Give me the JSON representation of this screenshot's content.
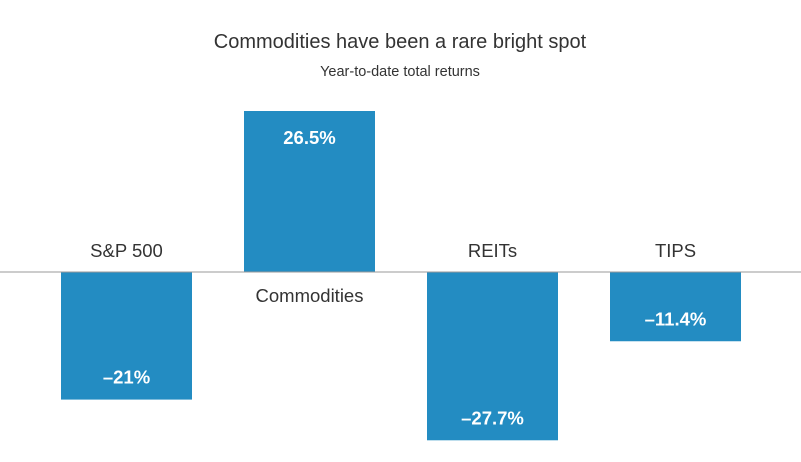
{
  "chart_data": {
    "type": "bar",
    "title": "Commodities have been a rare bright spot",
    "subtitle": "Year-to-date total returns",
    "xlabel": "",
    "ylabel": "",
    "categories": [
      "S&P 500",
      "Commodities",
      "REITs",
      "TIPS"
    ],
    "values": [
      -21,
      26.5,
      -27.7,
      -11.4
    ],
    "value_labels": [
      "–21%",
      "26.5%",
      "–27.7%",
      "–11.4%"
    ],
    "ylim": [
      -28.5,
      26.5
    ],
    "grid": false,
    "legend": "none",
    "bar_color": "#238cc2",
    "axis_color": "#999999",
    "text_color": "#333333"
  }
}
